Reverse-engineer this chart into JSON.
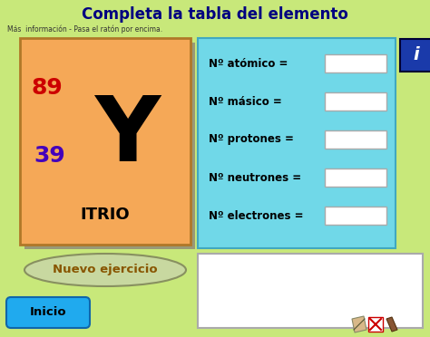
{
  "title": "Completa la tabla del elemento",
  "subtitle": "Más  información - Pasa el ratón por encima.",
  "bg_color": "#c8e87a",
  "element_symbol": "Y",
  "element_name": "ITRIO",
  "atomic_mass": "89",
  "atomic_number": "39",
  "element_box_color": "#f5a857",
  "element_border_color": "#b07828",
  "element_shadow_color": "#999977",
  "cyan_box_color": "#70d8e8",
  "cyan_box_border": "#40a8c0",
  "fields": [
    "Nº atómico =",
    "Nº másico =",
    "Nº protones =",
    "Nº neutrones =",
    "Nº electrones ="
  ],
  "title_color": "#000080",
  "title_fontsize": 12,
  "atomic_mass_color": "#cc0000",
  "atomic_number_color": "#4400bb",
  "element_name_color": "#000000",
  "symbol_color": "#000000",
  "field_text_color": "#000000",
  "input_box_color": "#ffffff",
  "input_box_border": "#aaaaaa",
  "info_box_color": "#1a3aaa",
  "info_i_color": "#ffffff",
  "nuevo_btn_color": "#c8d8a0",
  "nuevo_btn_border": "#889060",
  "nuevo_btn_text": "Nuevo ejercicio",
  "nuevo_btn_text_color": "#885500",
  "inicio_btn_color": "#20aaee",
  "inicio_btn_border": "#1066aa",
  "inicio_btn_text": "Inicio",
  "inicio_btn_text_color": "#000000",
  "white_panel_color": "#ffffff",
  "white_panel_border": "#aaaaaa"
}
